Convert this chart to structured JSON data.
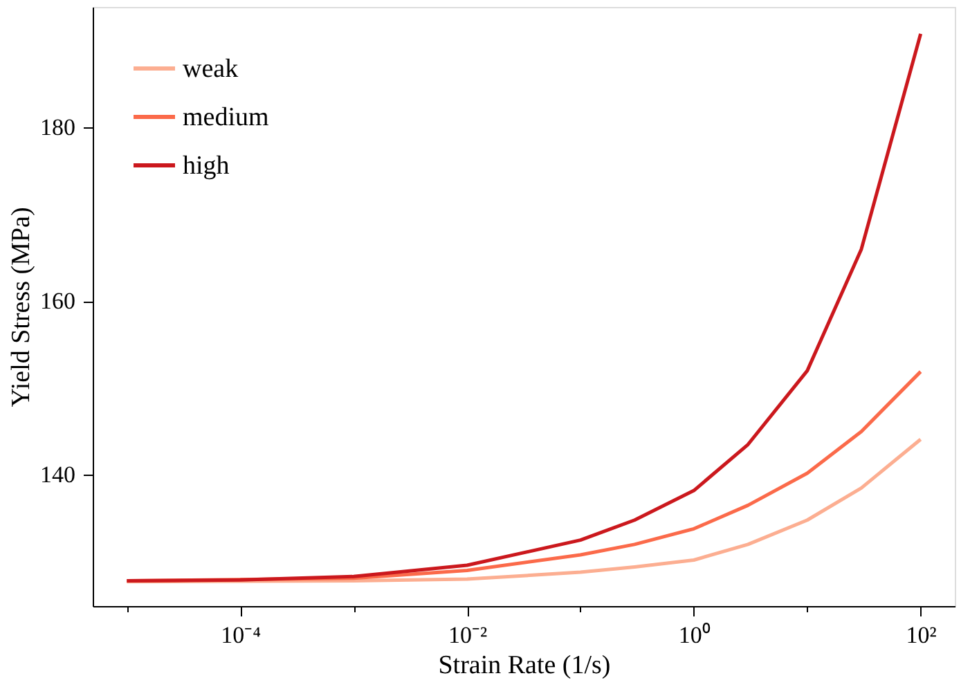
{
  "chart_data": {
    "type": "line",
    "xlabel": "Strain Rate (1/s)",
    "ylabel": "Yield Stress (MPa)",
    "log": "x",
    "grid": false,
    "legend": "top left",
    "line_style": "solid",
    "marker": "none",
    "xlim": [
      5e-06,
      200
    ],
    "ylim": [
      124.9,
      193.9
    ],
    "xticks": [
      {
        "value": 1e-05,
        "label": null
      },
      {
        "value": 0.0001,
        "label": "10⁻⁴"
      },
      {
        "value": 0.001,
        "label": null
      },
      {
        "value": 0.01,
        "label": "10⁻²"
      },
      {
        "value": 0.1,
        "label": null
      },
      {
        "value": 1,
        "label": "10⁰"
      },
      {
        "value": 10,
        "label": null
      },
      {
        "value": 100,
        "label": "10²"
      }
    ],
    "yticks": [
      140,
      160,
      180
    ],
    "series": [
      {
        "name": "weak",
        "color": "#fcae91",
        "x": [
          1e-05,
          0.001,
          0.01,
          0.1,
          0.3,
          1,
          3,
          10,
          30,
          100
        ],
        "values": [
          127.7,
          127.8,
          128.0,
          128.8,
          129.4,
          130.2,
          132.0,
          134.8,
          138.5,
          144.1
        ]
      },
      {
        "name": "medium",
        "color": "#fb6a4a",
        "x": [
          1e-05,
          0.001,
          0.01,
          0.1,
          0.3,
          1,
          3,
          10,
          30,
          100
        ],
        "values": [
          127.8,
          128.1,
          129.0,
          130.8,
          132.0,
          133.8,
          136.5,
          140.2,
          145.0,
          151.9
        ]
      },
      {
        "name": "high",
        "color": "#cb181d",
        "x": [
          1e-05,
          0.0001,
          0.001,
          0.01,
          0.1,
          0.3,
          1,
          3,
          10,
          30,
          100
        ],
        "values": [
          127.8,
          127.9,
          128.3,
          129.6,
          132.5,
          134.8,
          138.2,
          143.5,
          152.0,
          166.0,
          190.8
        ]
      }
    ]
  }
}
